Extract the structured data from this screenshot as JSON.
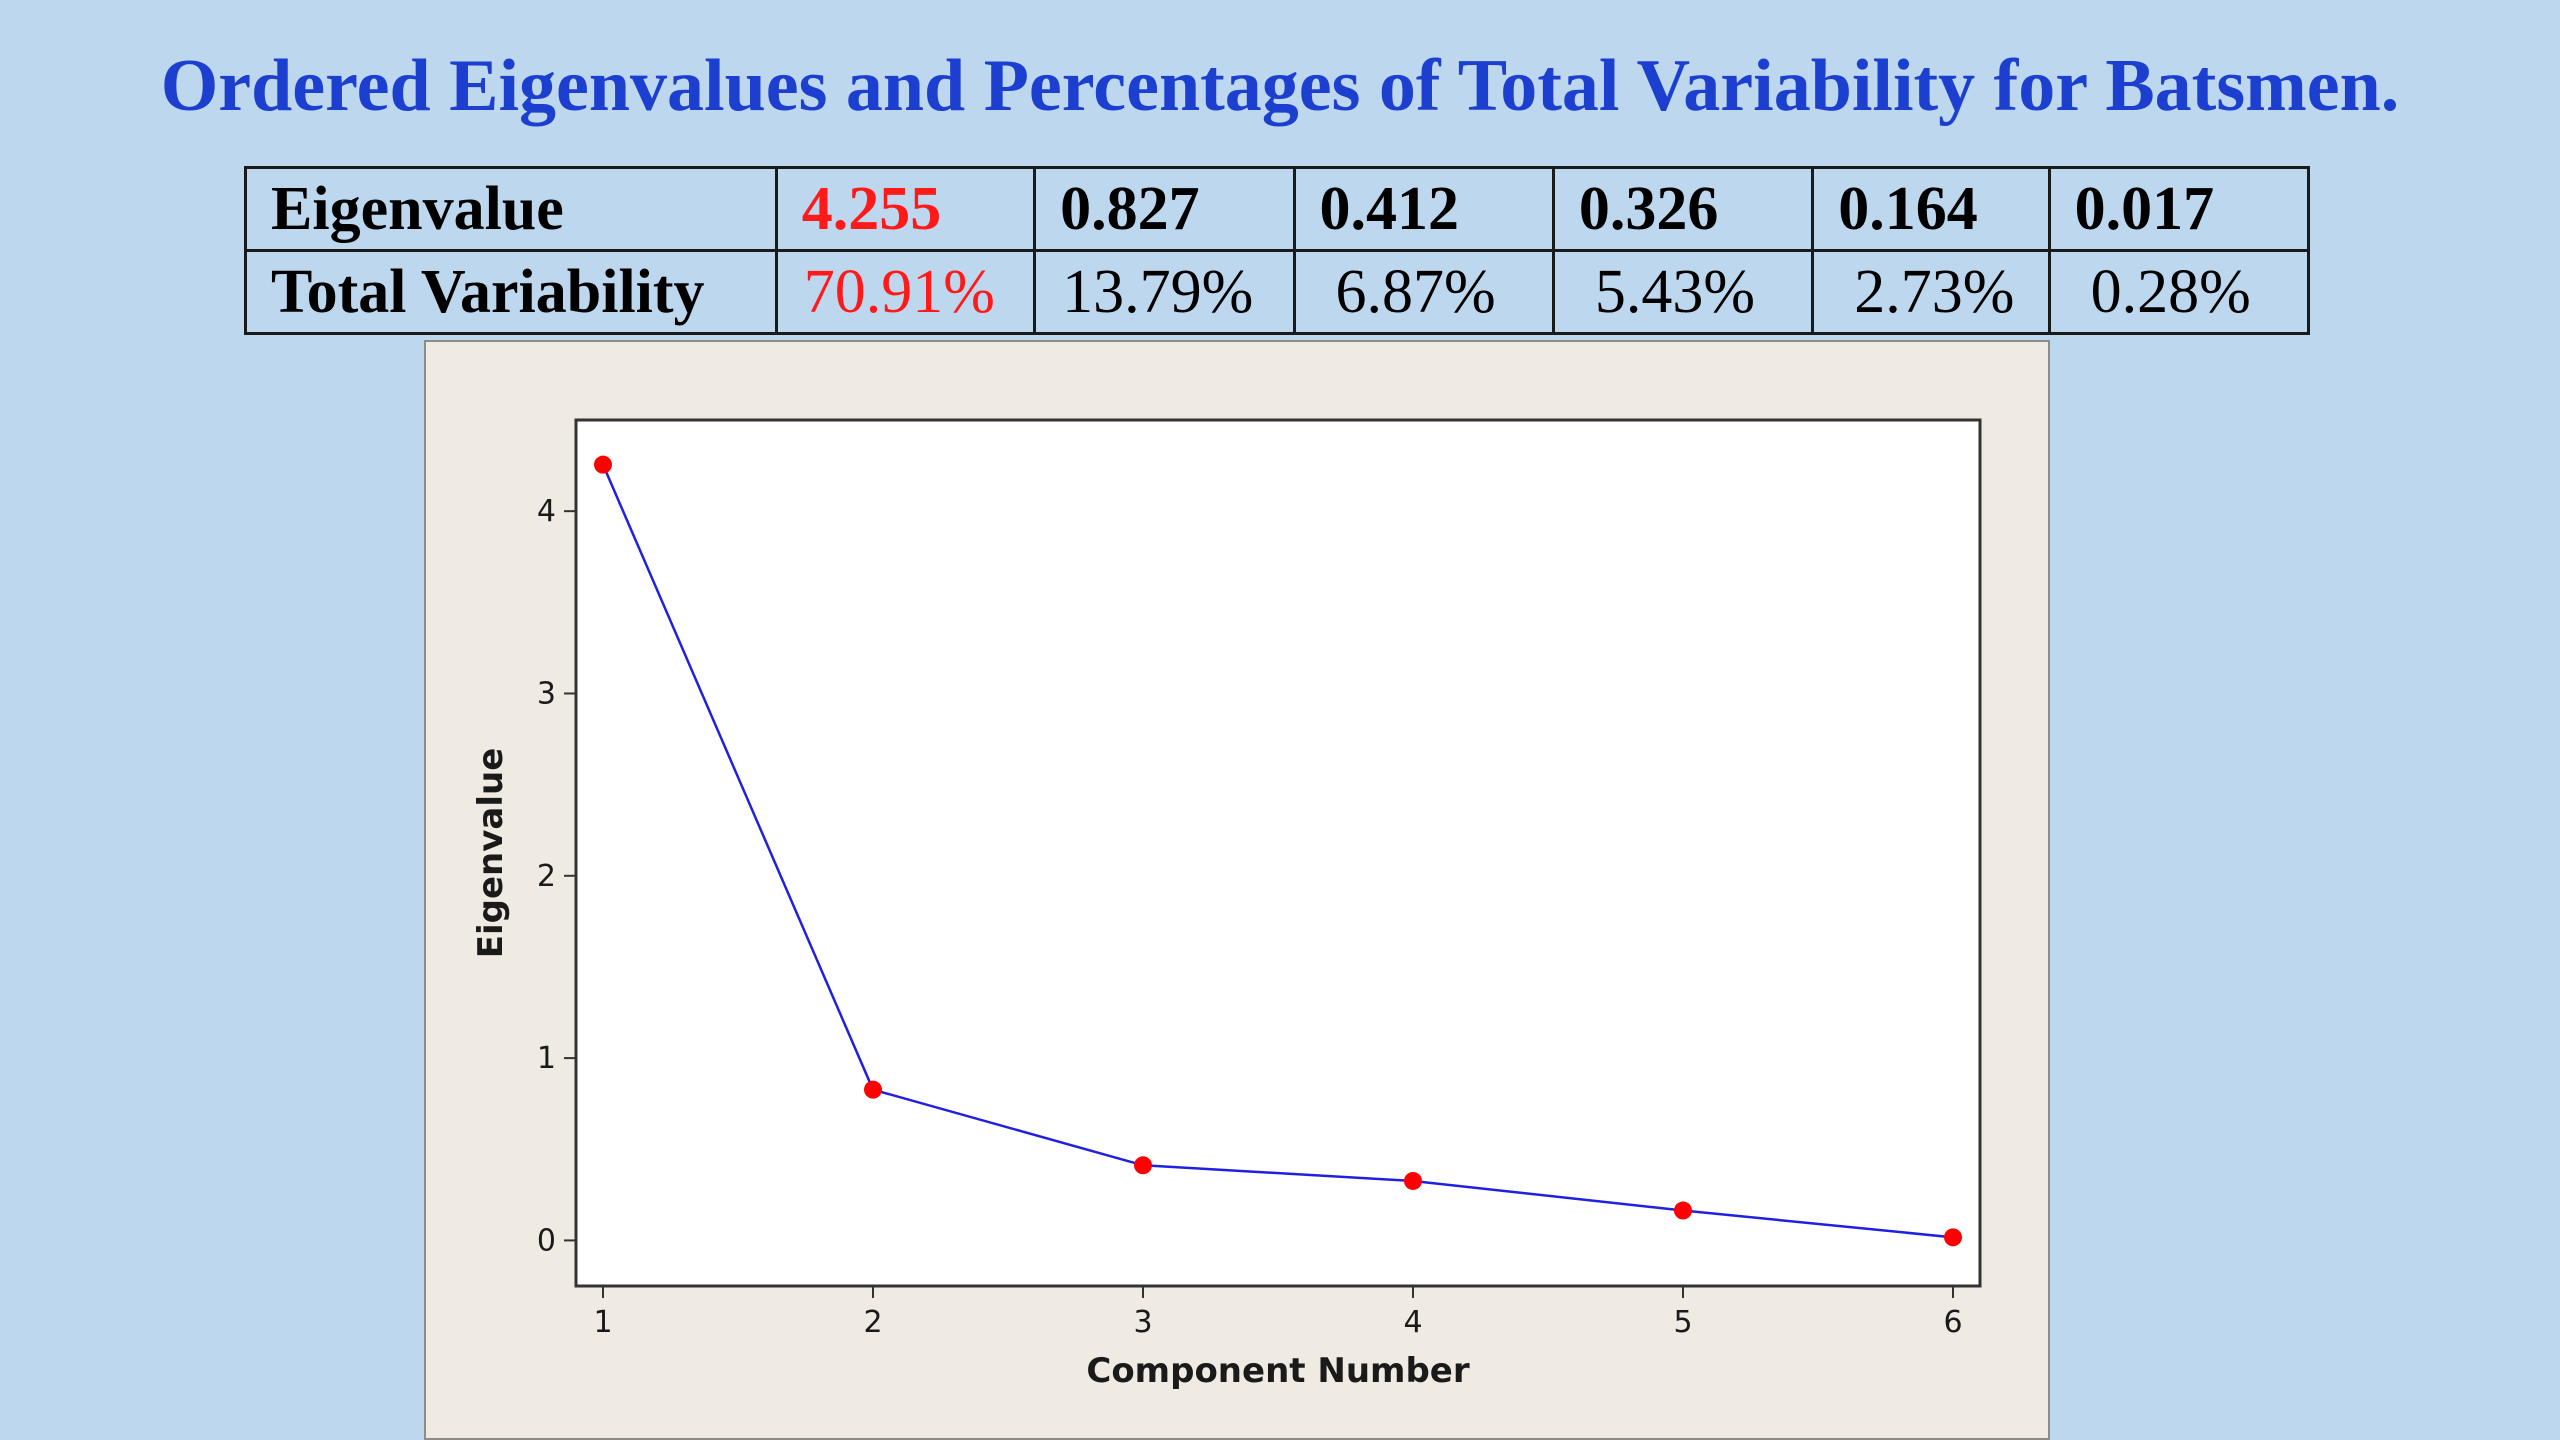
{
  "title": "Ordered Eigenvalues and Percentages of Total Variability for Batsmen.",
  "table": {
    "row_labels": [
      "Eigenvalue",
      "Total Variability"
    ],
    "eigenvalues": [
      "4.255",
      "0.827",
      "0.412",
      "0.326",
      "0.164",
      "0.017"
    ],
    "variability": [
      "70.91%",
      "13.79%",
      "6.87%",
      "5.43%",
      "2.73%",
      "0.28%"
    ],
    "highlight_color": "#ff1a1a"
  },
  "chart_data": {
    "type": "line",
    "x": [
      1,
      2,
      3,
      4,
      5,
      6
    ],
    "series": [
      {
        "values": [
          4.255,
          0.827,
          0.412,
          0.326,
          0.164,
          0.017
        ],
        "line_color": "#2020e0",
        "marker_color": "#ff0000"
      }
    ],
    "xlabel": "Component Number",
    "ylabel": "Eigenvalue",
    "xlim": [
      0.9,
      6.1
    ],
    "ylim": [
      -0.25,
      4.5
    ],
    "xticks": [
      "1",
      "2",
      "3",
      "4",
      "5",
      "6"
    ],
    "yticks": [
      "0",
      "1",
      "2",
      "3",
      "4"
    ],
    "grid": false,
    "legend": "none"
  }
}
